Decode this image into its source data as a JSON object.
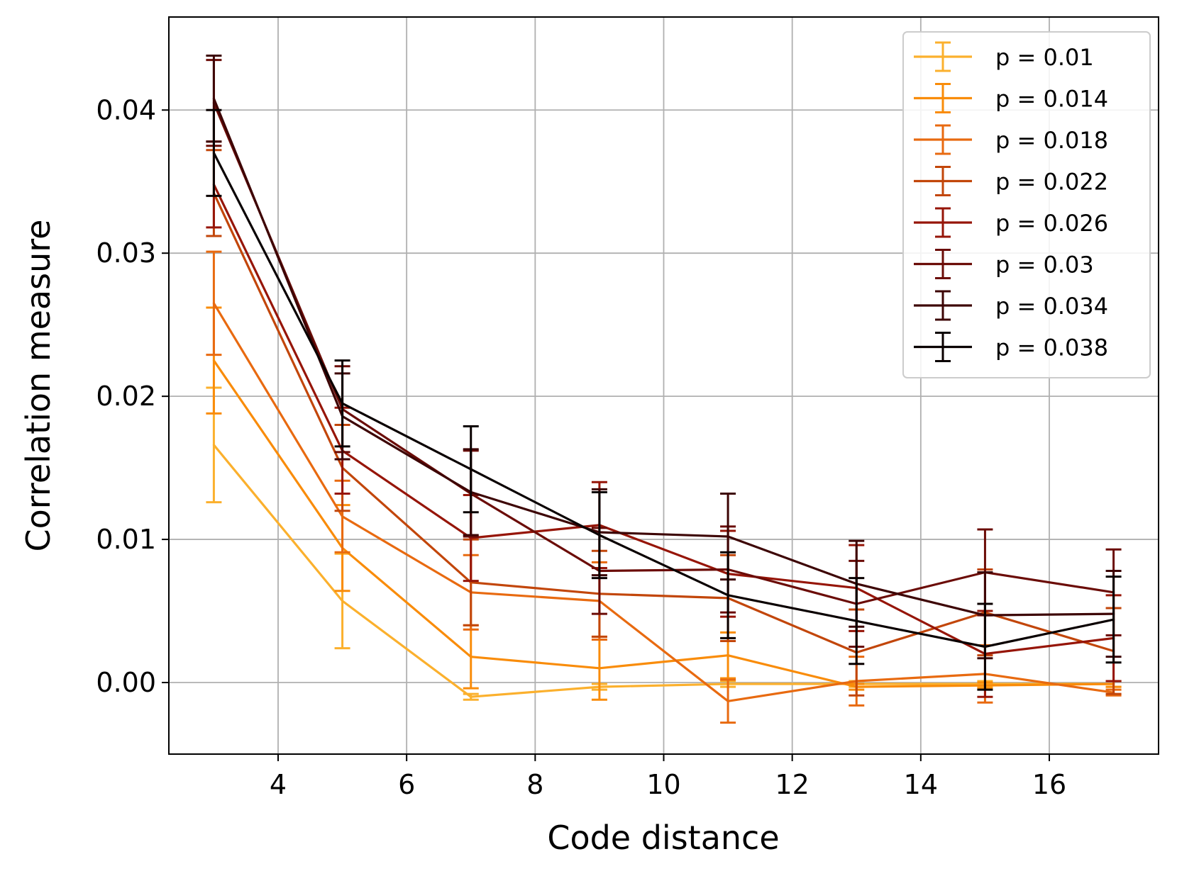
{
  "chart_data": {
    "type": "line",
    "title": "",
    "xlabel": "Code distance",
    "ylabel": "Correlation measure",
    "xlim": [
      2.3,
      17.7
    ],
    "ylim": [
      -0.005,
      0.0465
    ],
    "xticks": [
      4,
      6,
      8,
      10,
      12,
      14,
      16
    ],
    "xtick_labels": [
      "4",
      "6",
      "8",
      "10",
      "12",
      "14",
      "16"
    ],
    "yticks": [
      0.0,
      0.01,
      0.02,
      0.03,
      0.04
    ],
    "ytick_labels": [
      "0.00",
      "0.01",
      "0.02",
      "0.03",
      "0.04"
    ],
    "grid": true,
    "legend_position": "top-right",
    "x": [
      3,
      5,
      7,
      9,
      11,
      13,
      15,
      17
    ],
    "series": [
      {
        "name": "p = 0.01",
        "color": "#fbb02d",
        "values": [
          0.0166,
          0.0057,
          -0.001,
          -0.0003,
          -0.0001,
          -0.0001,
          -0.0001,
          -0.0001
        ],
        "errors": [
          0.004,
          0.0033,
          0.0002,
          0.0002,
          0.0002,
          0.0002,
          0.0002,
          0.0002
        ]
      },
      {
        "name": "p = 0.014",
        "color": "#f98c0a",
        "values": [
          0.0225,
          0.0094,
          0.0018,
          0.001,
          0.0019,
          -0.0003,
          -0.0002,
          -0.0001
        ],
        "errors": [
          0.0037,
          0.003,
          0.0022,
          0.0022,
          0.0016,
          0.0002,
          0.0002,
          0.0002
        ]
      },
      {
        "name": "p = 0.018",
        "color": "#e86a10",
        "values": [
          0.0265,
          0.0116,
          0.0063,
          0.0057,
          -0.0013,
          0.0001,
          0.0006,
          -0.0007
        ],
        "errors": [
          0.0036,
          0.0025,
          0.0026,
          0.0027,
          0.0015,
          0.0017,
          0.002,
          0.0002
        ]
      },
      {
        "name": "p = 0.022",
        "color": "#c2460a",
        "values": [
          0.0342,
          0.015,
          0.007,
          0.0062,
          0.0059,
          0.0021,
          0.0049,
          0.0022
        ]
      },
      {
        "name": "p = 0.026",
        "color": "#961508",
        "values": [
          0.0348,
          0.0162,
          0.0101,
          0.011,
          0.0076,
          0.0066,
          0.002,
          0.0031
        ]
      },
      {
        "name": "p = 0.03",
        "color": "#6b0c07",
        "values": [
          0.0405,
          0.0191,
          0.0132,
          0.0078,
          0.0079,
          0.0055,
          0.0077,
          0.0063
        ]
      },
      {
        "name": "p = 0.034",
        "color": "#3d0505",
        "values": [
          0.0408,
          0.0186,
          0.0133,
          0.0105,
          0.0102,
          0.0069,
          0.0047,
          0.0048
        ]
      },
      {
        "name": "p = 0.038",
        "color": "#0a0000",
        "values": [
          0.037,
          0.0195,
          0.0149,
          0.0103,
          0.0061,
          0.0043,
          0.0025,
          0.0044
        ]
      }
    ],
    "default_error": 0.003
  }
}
